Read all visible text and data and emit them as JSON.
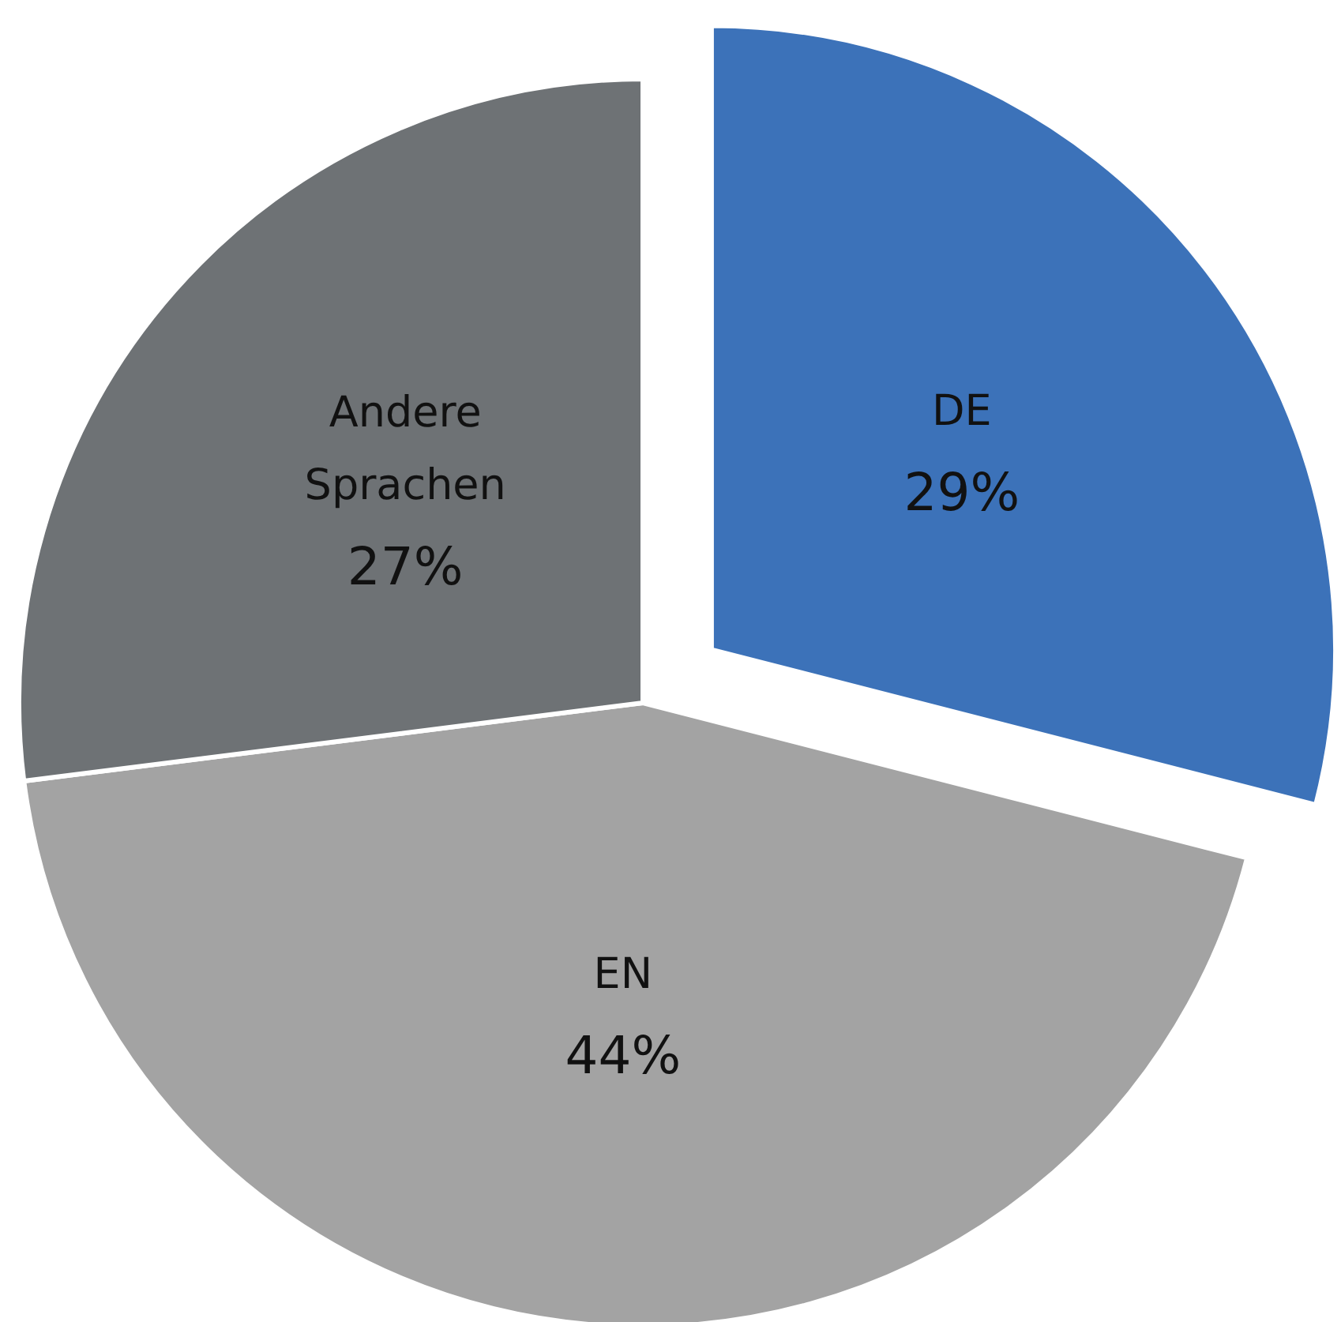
{
  "chart_data": {
    "type": "pie",
    "categories": [
      "DE",
      "EN",
      "Andere Sprachen"
    ],
    "values": [
      29,
      44,
      27
    ],
    "colors": [
      "#3c72b9",
      "#a3a3a3",
      "#6e7275"
    ],
    "value_labels": [
      "29%",
      "44%",
      "27%"
    ]
  }
}
